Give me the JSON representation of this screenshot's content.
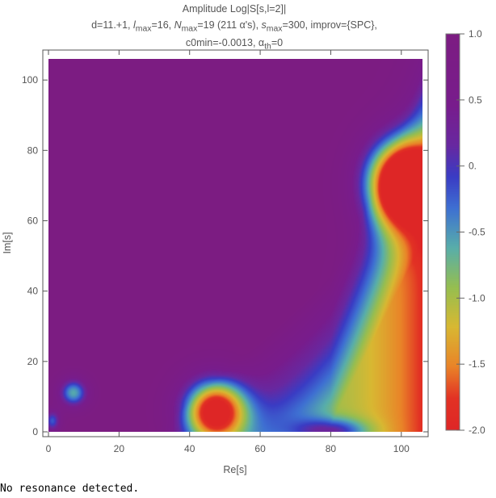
{
  "chart_data": {
    "type": "heatmap",
    "title_lines": [
      "Amplitude Log|S[s,l=2]|",
      "d=11.+1, l_max=16, N_max=19 (211 α's), s_max=300, improv={SPC},",
      "c0min=-0.0013, α_th=0"
    ],
    "title": {
      "line1": "Amplitude Log|S[s,l=2]|",
      "line2_parts": [
        "d=11.+1, ",
        "l",
        "max",
        "=16, ",
        "N",
        "max",
        "=19 (211 α's), ",
        "s",
        "max",
        "=300, improv={SPC},"
      ],
      "line3_parts": [
        "c0min=-0.0013, α",
        "th",
        "=0"
      ]
    },
    "xlabel": "Re[s]",
    "ylabel": "Im[s]",
    "xlim": [
      0,
      106
    ],
    "ylim": [
      0,
      106
    ],
    "x_ticks": [
      "0",
      "20",
      "40",
      "60",
      "80",
      "100"
    ],
    "y_ticks": [
      "0",
      "20",
      "40",
      "60",
      "80",
      "100"
    ],
    "colorbar": {
      "range": [
        -2.0,
        1.0
      ],
      "ticks": [
        "1.0",
        "0.5",
        "0.",
        "-0.5",
        "-1.0",
        "-1.5",
        "-2.0"
      ],
      "placement": "right"
    },
    "features": [
      {
        "re": 100,
        "im": 71,
        "value": -2.0
      },
      {
        "re": 47,
        "im": 6,
        "value": -2.0
      },
      {
        "re": 7,
        "im": 11,
        "value": -0.2
      }
    ]
  },
  "status": {
    "message": "No resonance detected."
  }
}
